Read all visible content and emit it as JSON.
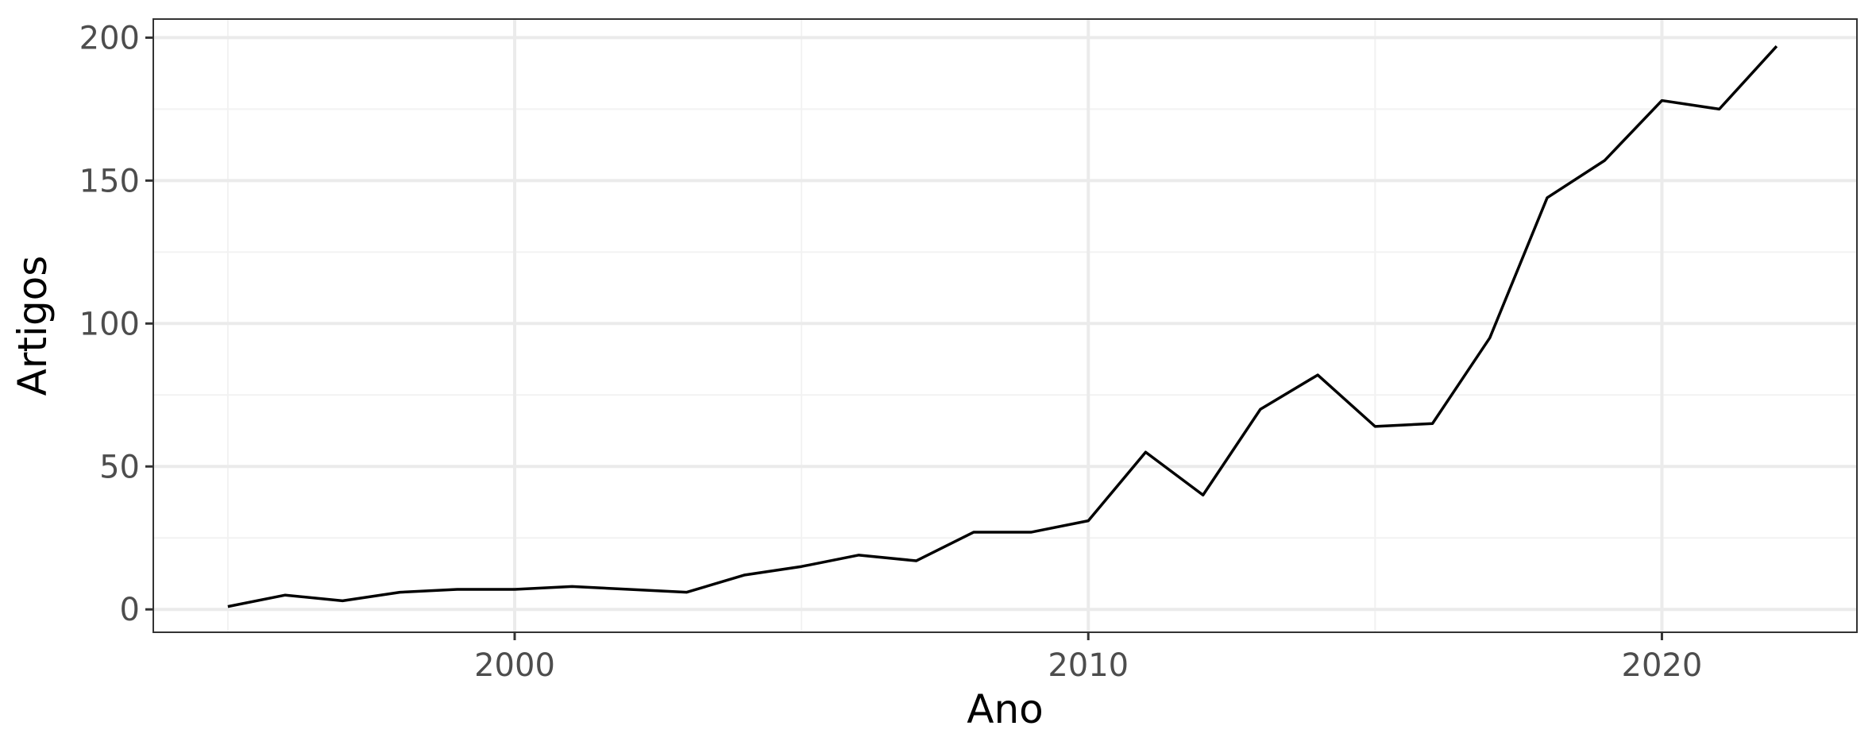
{
  "chart_data": {
    "type": "line",
    "title": "",
    "xlabel": "Ano",
    "ylabel": "Artigos",
    "xlim": [
      1993.7,
      2023.4
    ],
    "ylim": [
      -8,
      206.5
    ],
    "x_ticks": [
      2000,
      2010,
      2020
    ],
    "x_tick_labels": [
      "2000",
      "2010",
      "2020"
    ],
    "x_minor_ticks": [
      1995,
      2005,
      2015
    ],
    "y_ticks": [
      0,
      50,
      100,
      150,
      200
    ],
    "y_tick_labels": [
      "0",
      "50",
      "100",
      "150",
      "200"
    ],
    "y_minor_ticks": [
      25,
      75,
      125,
      175
    ],
    "grid": true,
    "legend": "none",
    "colors": {
      "line": "#000000",
      "background": "#ffffff",
      "grid_major": "#ebebeb",
      "grid_minor": "#f2f2f2",
      "border": "#333333",
      "tick_label": "#4d4d4d"
    },
    "x": [
      1995,
      1996,
      1997,
      1998,
      1999,
      2000,
      2001,
      2002,
      2003,
      2004,
      2005,
      2006,
      2007,
      2008,
      2009,
      2010,
      2011,
      2012,
      2013,
      2014,
      2015,
      2016,
      2017,
      2018,
      2019,
      2020,
      2021,
      2022
    ],
    "series": [
      {
        "values": [
          1,
          5,
          3,
          6,
          7,
          7,
          8,
          7,
          6,
          12,
          15,
          19,
          17,
          27,
          27,
          31,
          55,
          40,
          70,
          82,
          64,
          65,
          95,
          144,
          157,
          178,
          175,
          197
        ]
      }
    ]
  }
}
